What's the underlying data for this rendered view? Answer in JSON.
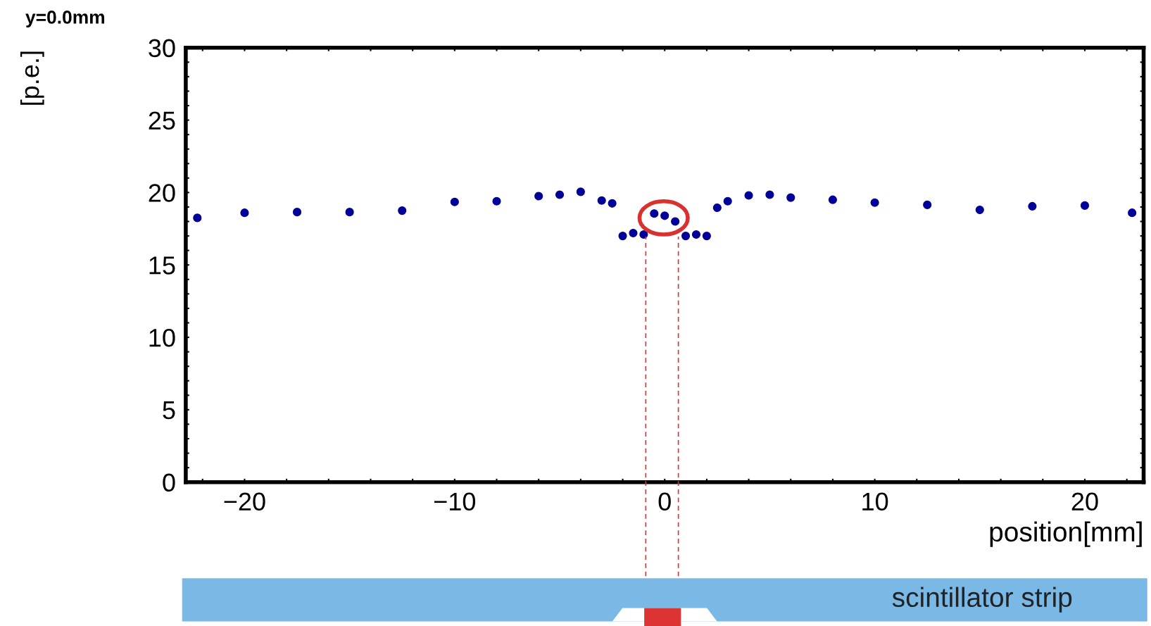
{
  "chart_data": {
    "type": "scatter",
    "title": "y=0.0mm",
    "xlabel": "position[mm]",
    "ylabel": "[p.e.]",
    "x": [
      -22.25,
      -20,
      -17.5,
      -15,
      -12.5,
      -10,
      -8,
      -6,
      -5,
      -4,
      -3,
      -2.5,
      -2,
      -1.5,
      -1,
      -0.5,
      0,
      0.5,
      1,
      1.5,
      2,
      2.5,
      3,
      4,
      5,
      6,
      8,
      10,
      12.5,
      15,
      17.5,
      20,
      22.25
    ],
    "series": [
      {
        "color": "#000099",
        "values": [
          18.25,
          18.6,
          18.65,
          18.65,
          18.75,
          19.35,
          19.4,
          19.75,
          19.85,
          20.05,
          19.45,
          19.25,
          17.0,
          17.2,
          17.1,
          18.55,
          18.4,
          18.0,
          17.0,
          17.1,
          17.0,
          18.95,
          19.4,
          19.8,
          19.85,
          19.65,
          19.5,
          19.3,
          19.15,
          18.8,
          19.05,
          19.1,
          18.6
        ]
      }
    ],
    "marker": "circle",
    "grid": false,
    "xlim": [
      -22.8,
      22.8
    ],
    "xticks": [
      {
        "value": -22,
        "label": null
      },
      -20,
      {
        "value": -18,
        "label": null
      },
      {
        "value": -16,
        "label": null
      },
      {
        "value": -14,
        "label": null
      },
      {
        "value": -12,
        "label": null
      },
      -10,
      {
        "value": -8,
        "label": null
      },
      {
        "value": -6,
        "label": null
      },
      {
        "value": -4,
        "label": null
      },
      {
        "value": -2,
        "label": null
      },
      0,
      {
        "value": 2,
        "label": null
      },
      {
        "value": 4,
        "label": null
      },
      {
        "value": 6,
        "label": null
      },
      {
        "value": 8,
        "label": null
      },
      10,
      {
        "value": 12,
        "label": null
      },
      {
        "value": 14,
        "label": null
      },
      {
        "value": 16,
        "label": null
      },
      {
        "value": 18,
        "label": null
      },
      20,
      {
        "value": 22,
        "label": null
      }
    ],
    "ylim": [
      0,
      30
    ],
    "yticks": [
      0,
      {
        "value": 1,
        "label": null
      },
      {
        "value": 2,
        "label": null
      },
      {
        "value": 3,
        "label": null
      },
      {
        "value": 4,
        "label": null
      },
      5,
      {
        "value": 6,
        "label": null
      },
      {
        "value": 7,
        "label": null
      },
      {
        "value": 8,
        "label": null
      },
      {
        "value": 9,
        "label": null
      },
      10,
      {
        "value": 11,
        "label": null
      },
      {
        "value": 12,
        "label": null
      },
      {
        "value": 13,
        "label": null
      },
      {
        "value": 14,
        "label": null
      },
      15,
      {
        "value": 16,
        "label": null
      },
      {
        "value": 17,
        "label": null
      },
      {
        "value": 18,
        "label": null
      },
      {
        "value": 19,
        "label": null
      },
      20,
      {
        "value": 21,
        "label": null
      },
      {
        "value": 22,
        "label": null
      },
      {
        "value": 23,
        "label": null
      },
      {
        "value": 24,
        "label": null
      },
      25,
      {
        "value": 26,
        "label": null
      },
      {
        "value": 27,
        "label": null
      },
      {
        "value": 28,
        "label": null
      },
      {
        "value": 29,
        "label": null
      },
      30
    ],
    "ref_lines": [
      {
        "axis": "x",
        "value": -0.9,
        "color": "#e03030",
        "line_style": "dashed"
      },
      {
        "axis": "x",
        "value": 0.65,
        "color": "#e03030",
        "line_style": "dashed"
      }
    ],
    "annotations": [
      "scintillator strip"
    ]
  }
}
